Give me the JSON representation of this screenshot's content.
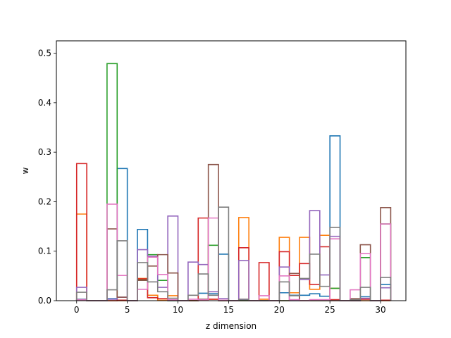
{
  "chart_data": {
    "type": "histogram-step",
    "title": "",
    "xlabel": "z dimension",
    "ylabel": "w",
    "xlim": [
      -2.0,
      32.5
    ],
    "ylim": [
      0,
      0.525
    ],
    "xticks": [
      0,
      5,
      10,
      15,
      20,
      25,
      30
    ],
    "yticks": [
      0.0,
      0.1,
      0.2,
      0.3,
      0.4,
      0.5
    ],
    "ytick_labels": [
      "0.0",
      "0.1",
      "0.2",
      "0.3",
      "0.4",
      "0.5"
    ],
    "bin_edges": [
      0,
      1,
      2,
      3,
      4,
      5,
      6,
      7,
      8,
      9,
      10,
      11,
      12,
      13,
      14,
      15,
      16,
      17,
      18,
      19,
      20,
      21,
      22,
      23,
      24,
      25,
      26,
      27,
      28,
      29,
      30,
      31
    ],
    "grid": false,
    "legend": false,
    "series": [
      {
        "color": "#1f77b4",
        "values": [
          0.003,
          0,
          0,
          0.004,
          0.267,
          0,
          0.144,
          0.011,
          0.001,
          0,
          0,
          0,
          0.015,
          0.014,
          0.094,
          0,
          0.002,
          0,
          0,
          0,
          0.016,
          0.011,
          0.011,
          0.014,
          0.009,
          0.333,
          0,
          0,
          0.008,
          0,
          0.033
        ]
      },
      {
        "color": "#ff7f0e",
        "values": [
          0.175,
          0,
          0,
          0,
          0,
          0,
          0.045,
          0.011,
          0.001,
          0.01,
          0,
          0,
          0.002,
          0.003,
          0,
          0,
          0.168,
          0,
          0.003,
          0,
          0.128,
          0.016,
          0.128,
          0.023,
          0.132,
          0.025,
          0,
          0,
          0,
          0,
          0
        ]
      },
      {
        "color": "#2ca02c",
        "values": [
          0.001,
          0,
          0,
          0.479,
          0.001,
          0,
          0.043,
          0.093,
          0.041,
          0,
          0,
          0,
          0.003,
          0.112,
          0,
          0,
          0,
          0,
          0,
          0,
          0,
          0,
          0,
          0,
          0,
          0.025,
          0,
          0,
          0.087,
          0,
          0.155
        ]
      },
      {
        "color": "#d62728",
        "values": [
          0.277,
          0,
          0,
          0,
          0.001,
          0,
          0.044,
          0.006,
          0.004,
          0.001,
          0,
          0,
          0.167,
          0.003,
          0.001,
          0,
          0.107,
          0,
          0.077,
          0,
          0.099,
          0.051,
          0.075,
          0.033,
          0.109,
          0.002,
          0,
          0,
          0.003,
          0,
          0.001
        ]
      },
      {
        "color": "#9467bd",
        "values": [
          0.027,
          0,
          0,
          0.003,
          0.007,
          0,
          0.103,
          0.09,
          0.027,
          0.171,
          0,
          0.078,
          0.073,
          0.018,
          0.004,
          0,
          0.081,
          0,
          0,
          0,
          0.068,
          0,
          0.043,
          0.182,
          0.052,
          0.13,
          0,
          0,
          0.005,
          0,
          0.026
        ]
      },
      {
        "color": "#8c564b",
        "values": [
          0.002,
          0,
          0,
          0.145,
          0.007,
          0,
          0.041,
          0.07,
          0.093,
          0.056,
          0,
          0,
          0.003,
          0.275,
          0,
          0,
          0,
          0,
          0,
          0,
          0,
          0.055,
          0,
          0,
          0,
          0,
          0,
          0.004,
          0.113,
          0,
          0.188
        ]
      },
      {
        "color": "#e377c2",
        "values": [
          0.002,
          0,
          0,
          0.195,
          0.051,
          0,
          0.023,
          0.088,
          0.053,
          0.002,
          0,
          0.003,
          0.002,
          0.167,
          0.001,
          0,
          0.003,
          0,
          0.01,
          0,
          0.05,
          0.002,
          0,
          0.002,
          0.002,
          0.125,
          0,
          0.022,
          0.095,
          0,
          0.155
        ]
      },
      {
        "color": "#7f7f7f",
        "values": [
          0.017,
          0,
          0,
          0.022,
          0.121,
          0,
          0.077,
          0.038,
          0.018,
          0.005,
          0,
          0.011,
          0.054,
          0.011,
          0.189,
          0,
          0.003,
          0,
          0,
          0,
          0.038,
          0.01,
          0.045,
          0.094,
          0.029,
          0.148,
          0,
          0.002,
          0.027,
          0,
          0.047
        ]
      }
    ]
  }
}
